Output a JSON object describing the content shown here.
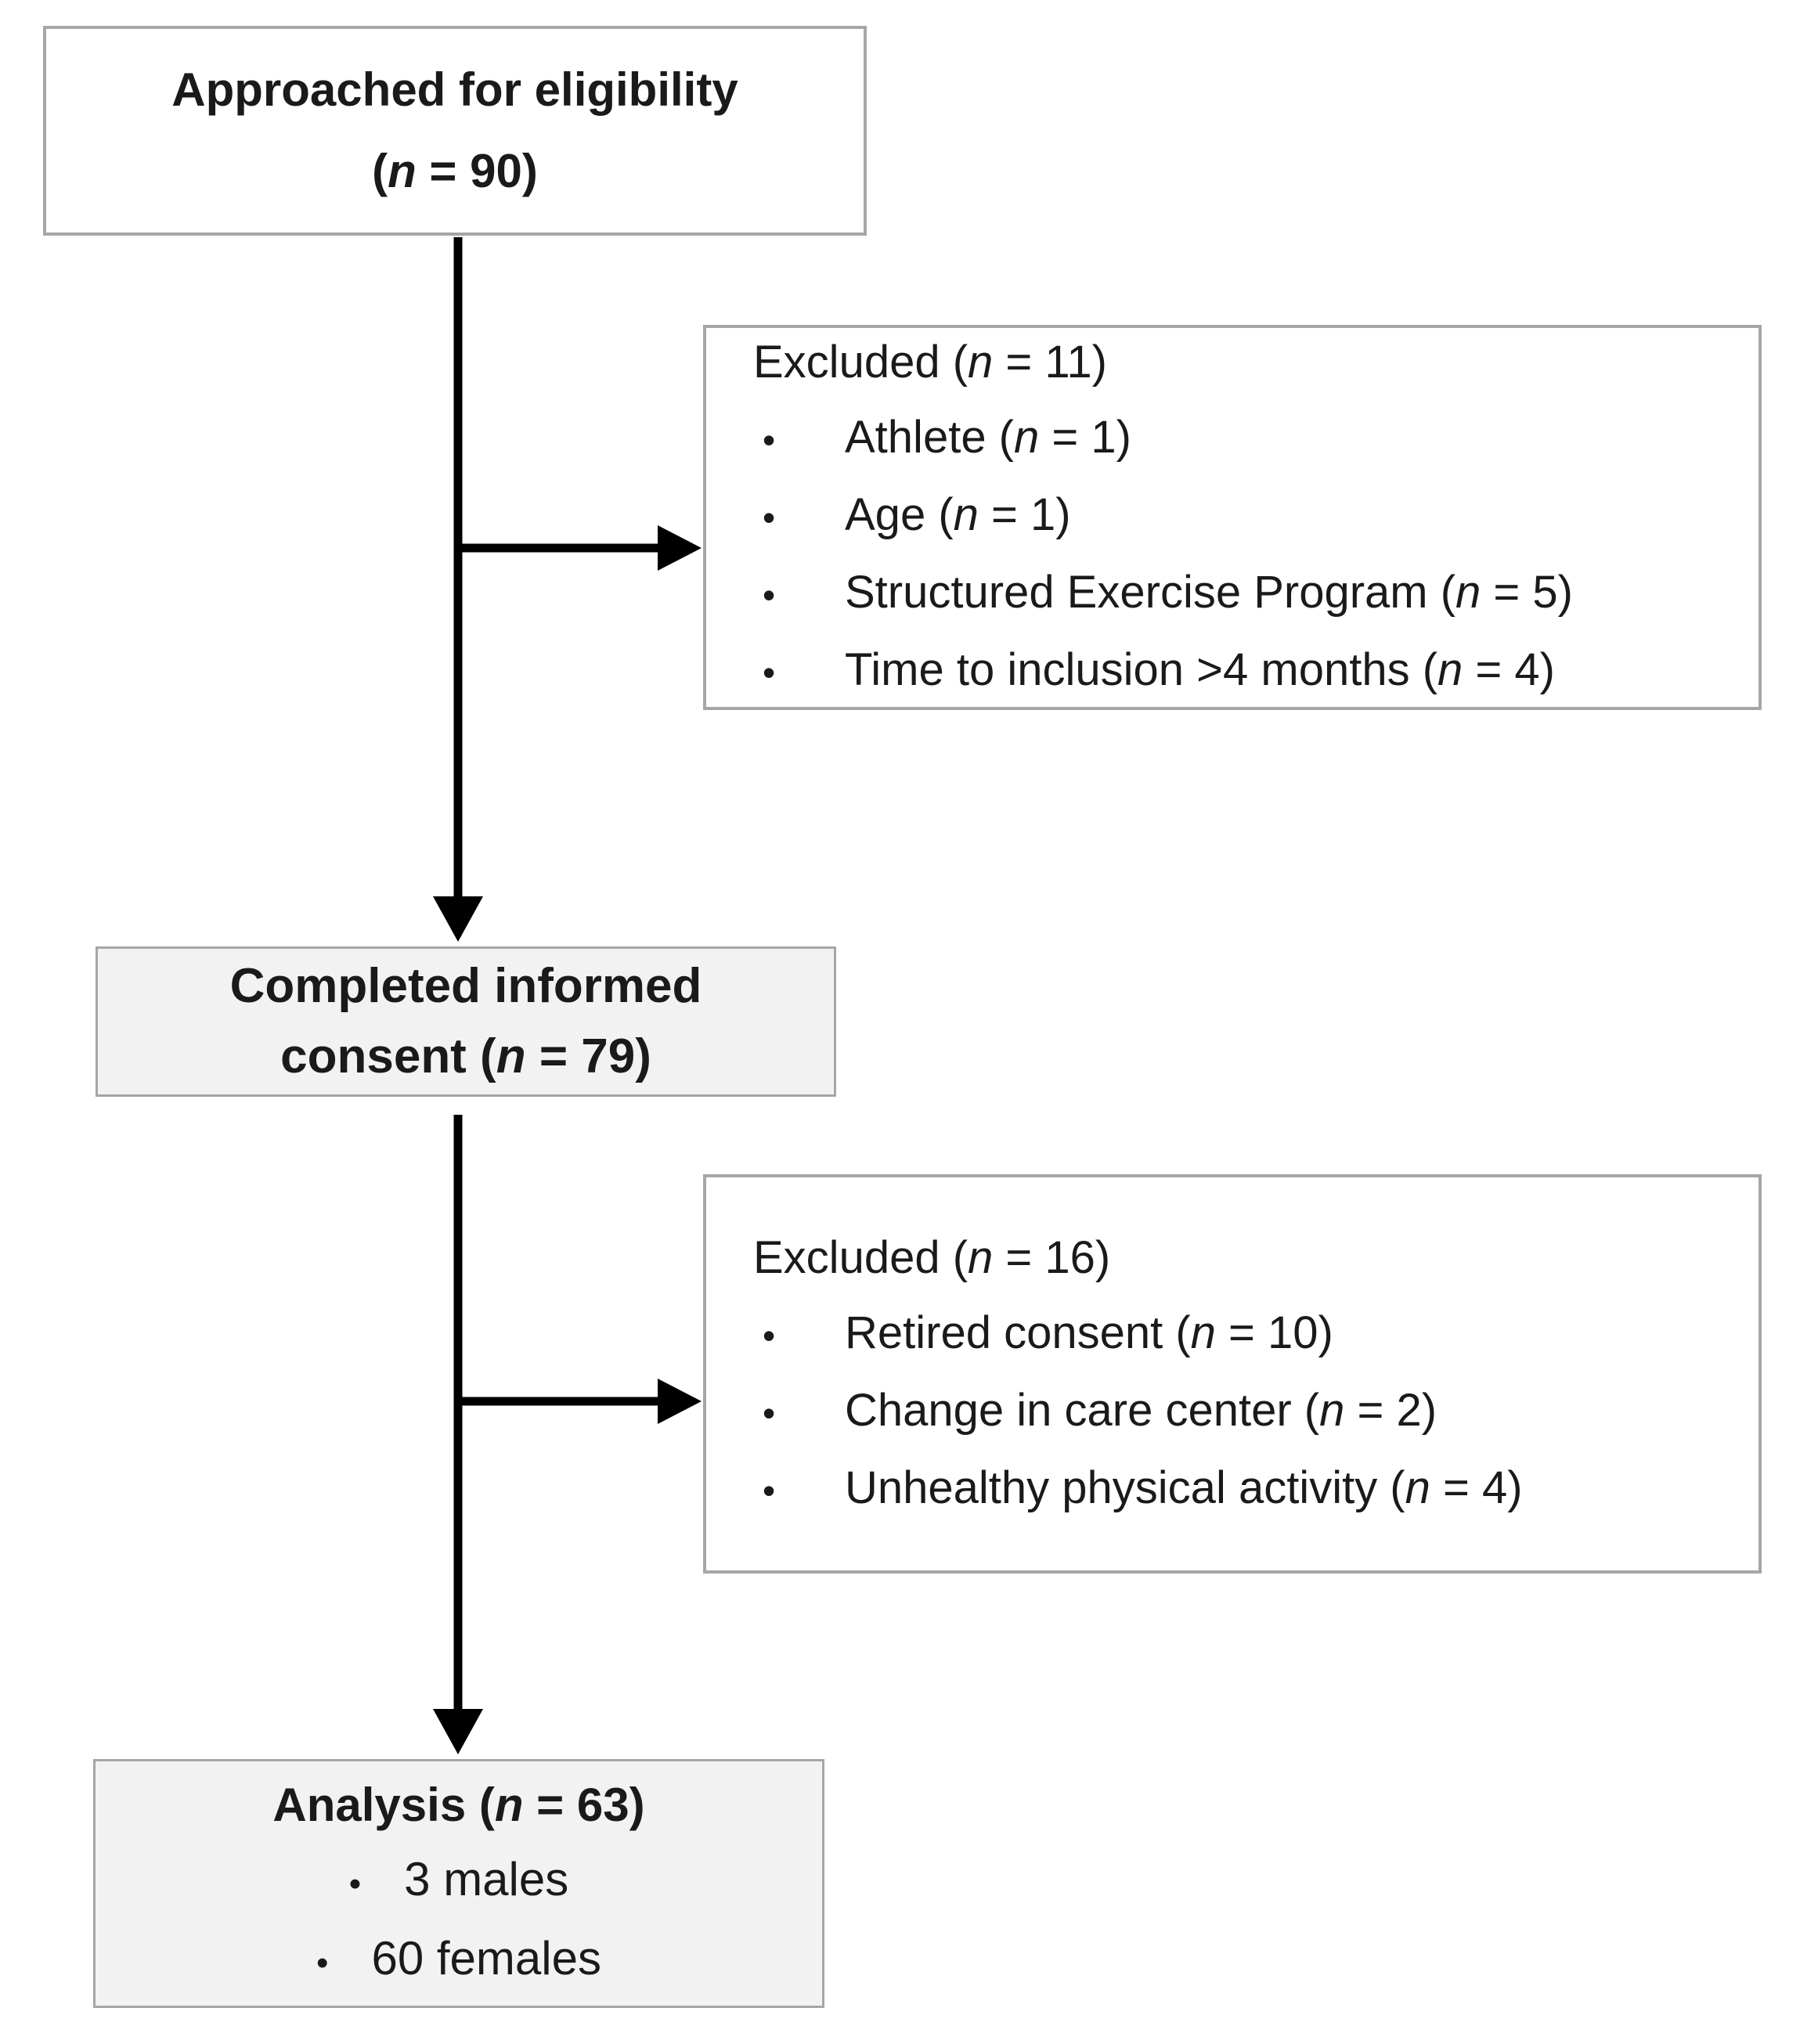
{
  "flowchart": {
    "approached_box": {
      "line1": "Approached for eligibility",
      "line2": "(n = 90)"
    },
    "excluded_box_1": {
      "title": "Excluded (n = 11)",
      "items": [
        "Athlete (n = 1)",
        "Age (n = 1)",
        "Structured Exercise Program (n = 5)",
        "Time to inclusion >4 months (n = 4)"
      ]
    },
    "consent_box": {
      "line1": "Completed informed",
      "line2": "consent (n = 79)"
    },
    "excluded_box_2": {
      "title": "Excluded (n = 16)",
      "items": [
        "Retired consent (n = 10)",
        "Change in care center (n = 2)",
        "Unhealthy physical activity (n = 4)"
      ]
    },
    "analysis_box": {
      "title": "Analysis (n = 63)",
      "items": [
        "3 males",
        "60 females"
      ]
    },
    "bullet_glyph": "•",
    "colors": {
      "background": "#ffffff",
      "plain_box_fill": "#ffffff",
      "shaded_box_fill": "#f2f2f2",
      "box_border": "#a6a6a6",
      "arrow": "#000000",
      "text": "#1a1a1a"
    }
  }
}
